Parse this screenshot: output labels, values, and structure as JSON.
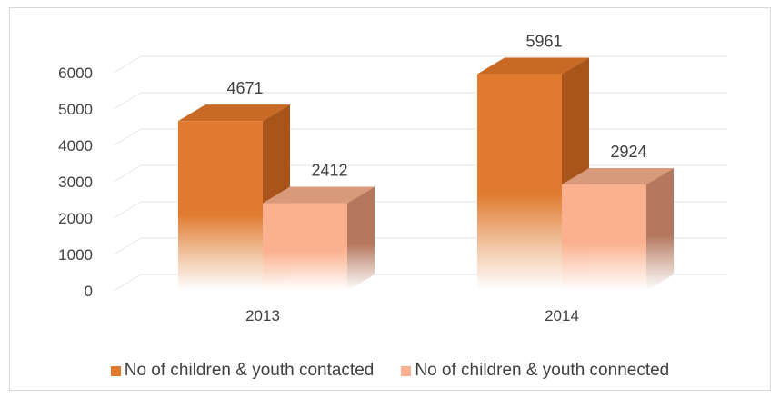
{
  "chart_data": {
    "type": "bar",
    "subtype": "3d-clustered-column",
    "categories": [
      "2013",
      "2014"
    ],
    "series": [
      {
        "name": "No of children & youth contacted",
        "values": [
          4671,
          5961
        ],
        "color": "#e07a2e",
        "side_color": "#a9541a",
        "top_color": "#c86a25"
      },
      {
        "name": "No of children & youth connected",
        "values": [
          2412,
          2924
        ],
        "color": "#fbb18f",
        "side_color": "#b5785e",
        "top_color": "#d99a7c"
      }
    ],
    "y_ticks": [
      0,
      1000,
      2000,
      3000,
      4000,
      5000,
      6000
    ],
    "ylim": [
      0,
      6000
    ],
    "grid": true,
    "legend_position": "bottom",
    "data_labels": true
  }
}
